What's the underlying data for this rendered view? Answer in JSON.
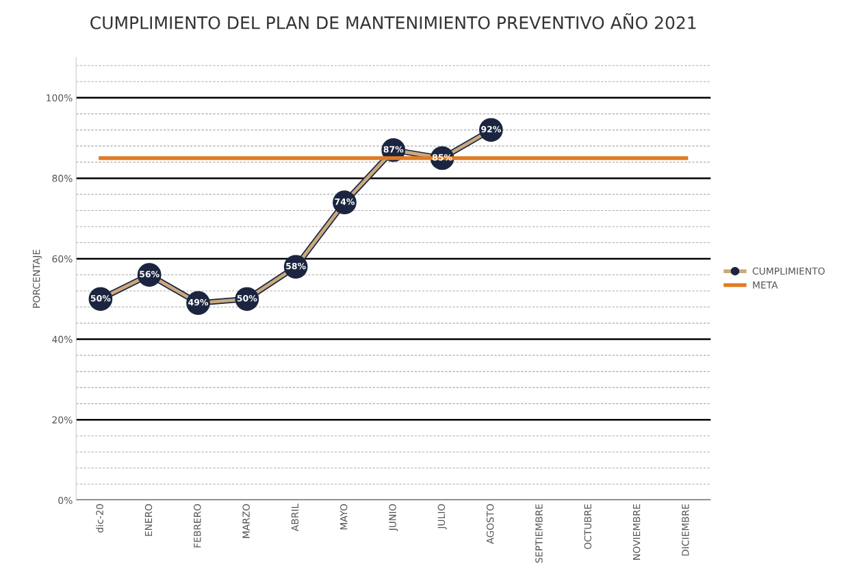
{
  "chart_data": {
    "type": "line",
    "title": "CUMPLIMIENTO DEL PLAN DE MANTENIMIENTO PREVENTIVO AÑO 2021",
    "ylabel": "PORCENTAJE",
    "categories": [
      "dic-20",
      "ENERO",
      "FEBRERO",
      "MARZO",
      "ABRIL",
      "MAYO",
      "JUNIO",
      "JULIO",
      "AGOSTO",
      "SEPTIEMBRE",
      "OCTUBRE",
      "NOVIEMBRE",
      "DICIEMBRE"
    ],
    "series": [
      {
        "name": "CUMPLIMIENTO",
        "color": "#c9a97c",
        "marker": "circle",
        "values": [
          50,
          56,
          49,
          50,
          58,
          74,
          87,
          85,
          92,
          null,
          null,
          null,
          null
        ],
        "value_labels": [
          "50%",
          "56%",
          "49%",
          "50%",
          "58%",
          "74%",
          "87%",
          "85%",
          "92%",
          null,
          null,
          null,
          null
        ]
      },
      {
        "name": "META",
        "color": "#e07b24",
        "marker": "none",
        "values": [
          85,
          85,
          85,
          85,
          85,
          85,
          85,
          85,
          85,
          85,
          85,
          85,
          85
        ]
      }
    ],
    "ylim": [
      0,
      110
    ],
    "yticks": [
      {
        "value": 0,
        "label": "0%"
      },
      {
        "value": 4,
        "label": null
      },
      {
        "value": 8,
        "label": null
      },
      {
        "value": 12,
        "label": null
      },
      {
        "value": 16,
        "label": null
      },
      {
        "value": 20,
        "label": "20%"
      },
      {
        "value": 24,
        "label": null
      },
      {
        "value": 28,
        "label": null
      },
      {
        "value": 32,
        "label": null
      },
      {
        "value": 36,
        "label": null
      },
      {
        "value": 40,
        "label": "40%"
      },
      {
        "value": 44,
        "label": null
      },
      {
        "value": 48,
        "label": null
      },
      {
        "value": 52,
        "label": null
      },
      {
        "value": 56,
        "label": null
      },
      {
        "value": 60,
        "label": "60%"
      },
      {
        "value": 64,
        "label": null
      },
      {
        "value": 68,
        "label": null
      },
      {
        "value": 72,
        "label": null
      },
      {
        "value": 76,
        "label": null
      },
      {
        "value": 80,
        "label": "80%"
      },
      {
        "value": 84,
        "label": null
      },
      {
        "value": 88,
        "label": null
      },
      {
        "value": 92,
        "label": null
      },
      {
        "value": 96,
        "label": null
      },
      {
        "value": 100,
        "label": "100%"
      },
      {
        "value": 104,
        "label": null
      },
      {
        "value": 108,
        "label": null
      }
    ],
    "grid": "y",
    "legend": "right",
    "line_style": "solid"
  }
}
